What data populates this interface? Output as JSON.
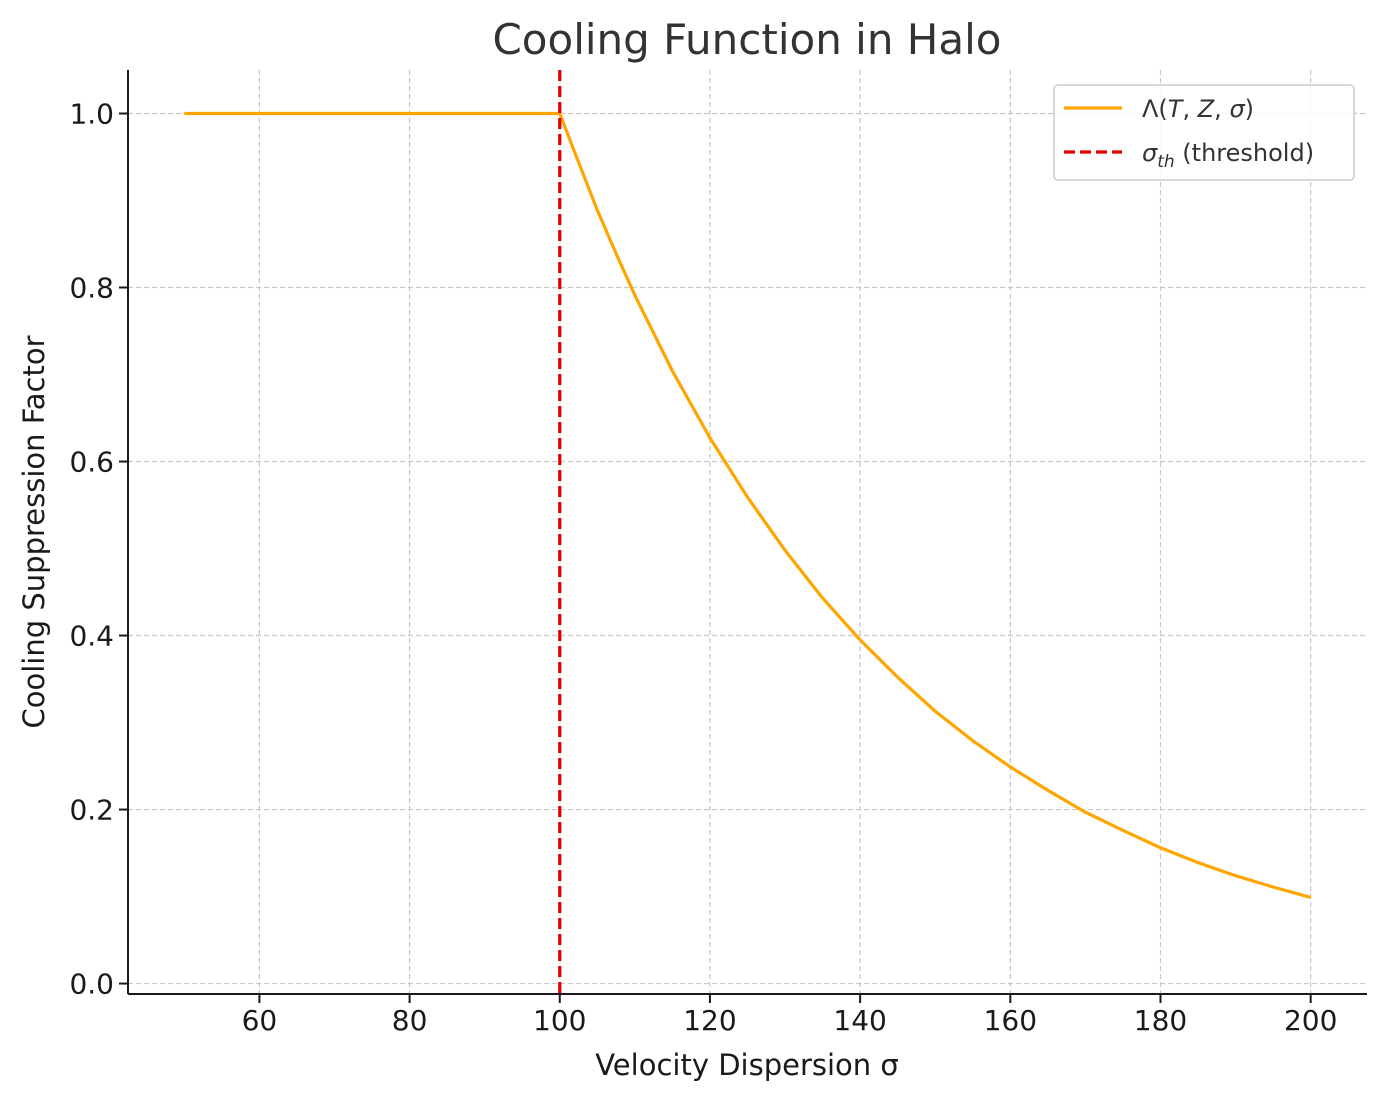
{
  "chart_data": {
    "type": "line",
    "title": "Cooling Function in Halo",
    "xlabel": "Velocity Dispersion σ",
    "ylabel": "Cooling Suppression Factor",
    "xlim": [
      42.5,
      207.5
    ],
    "ylim": [
      -0.012,
      1.05
    ],
    "xticks": [
      60,
      80,
      100,
      120,
      140,
      160,
      180,
      200
    ],
    "xtick_labels": [
      "60",
      "80",
      "100",
      "120",
      "140",
      "160",
      "180",
      "200"
    ],
    "yticks": [
      0.0,
      0.2,
      0.4,
      0.6,
      0.8,
      1.0
    ],
    "ytick_labels": [
      "0.0",
      "0.2",
      "0.4",
      "0.6",
      "0.8",
      "1.0"
    ],
    "grid": true,
    "legend_position": "top-right",
    "series": [
      {
        "name": "Λ(T, Z, σ)",
        "color": "#FFA500",
        "style": "solid",
        "x": [
          50,
          60,
          70,
          80,
          90,
          100,
          102.5,
          105,
          107.5,
          110,
          115,
          120,
          125,
          130,
          135,
          140,
          145,
          150,
          155,
          160,
          165,
          170,
          175,
          180,
          185,
          190,
          195,
          200
        ],
        "y": [
          1.0,
          1.0,
          1.0,
          1.0,
          1.0,
          1.0,
          0.944,
          0.889,
          0.839,
          0.791,
          0.704,
          0.627,
          0.559,
          0.498,
          0.443,
          0.395,
          0.352,
          0.313,
          0.279,
          0.249,
          0.222,
          0.197,
          0.176,
          0.156,
          0.139,
          0.124,
          0.111,
          0.099
        ]
      }
    ],
    "threshold": {
      "name": "σ",
      "name_sub": "th",
      "name_suffix": " (threshold)",
      "x": 100,
      "color": "#E00000",
      "style": "dashed"
    },
    "legend_series_label": {
      "lambda": "Λ(",
      "T": "T",
      "sep1": ", ",
      "Z": "Z",
      "sep2": ", ",
      "sigma": "σ",
      "close": ")"
    }
  }
}
